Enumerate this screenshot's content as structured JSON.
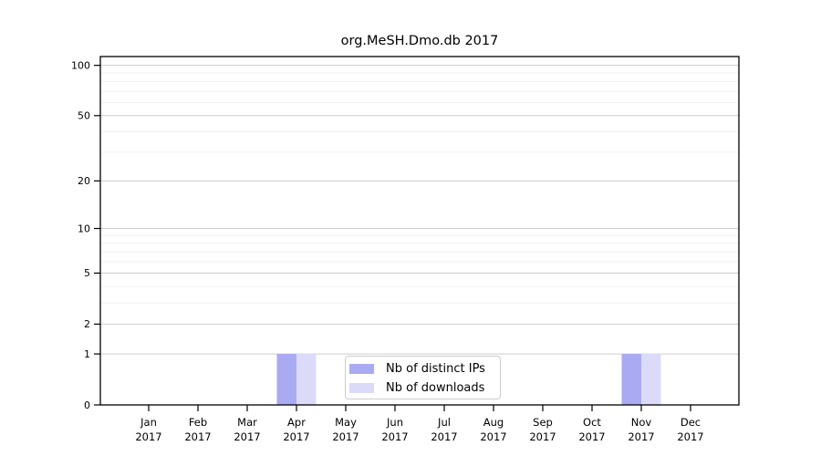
{
  "chart_data": {
    "type": "bar",
    "title": "org.MeSH.Dmo.db 2017",
    "categories": [
      "Jan",
      "Feb",
      "Mar",
      "Apr",
      "May",
      "Jun",
      "Jul",
      "Aug",
      "Sep",
      "Oct",
      "Nov",
      "Dec"
    ],
    "year": "2017",
    "series": [
      {
        "name": "Nb of distinct IPs",
        "color": "#aaaaf3",
        "values": [
          0,
          0,
          0,
          1,
          0,
          0,
          0,
          0,
          0,
          0,
          1,
          0
        ]
      },
      {
        "name": "Nb of downloads",
        "color": "#dbdbf9",
        "values": [
          0,
          0,
          0,
          1,
          0,
          0,
          0,
          0,
          0,
          0,
          1,
          0
        ]
      }
    ],
    "yscale": "log1p",
    "ylim": [
      0,
      112.8
    ],
    "yticks": [
      0,
      1,
      2,
      5,
      10,
      20,
      50,
      100
    ],
    "minor_yticks": [
      3,
      4,
      6,
      7,
      8,
      9,
      30,
      40,
      60,
      70,
      80,
      90
    ],
    "grid": {
      "major_color": "#cccccc",
      "minor_color": "#f0f0f0"
    },
    "axis_color": "#000000",
    "background": "#ffffff",
    "legend_position": "lower-center"
  }
}
